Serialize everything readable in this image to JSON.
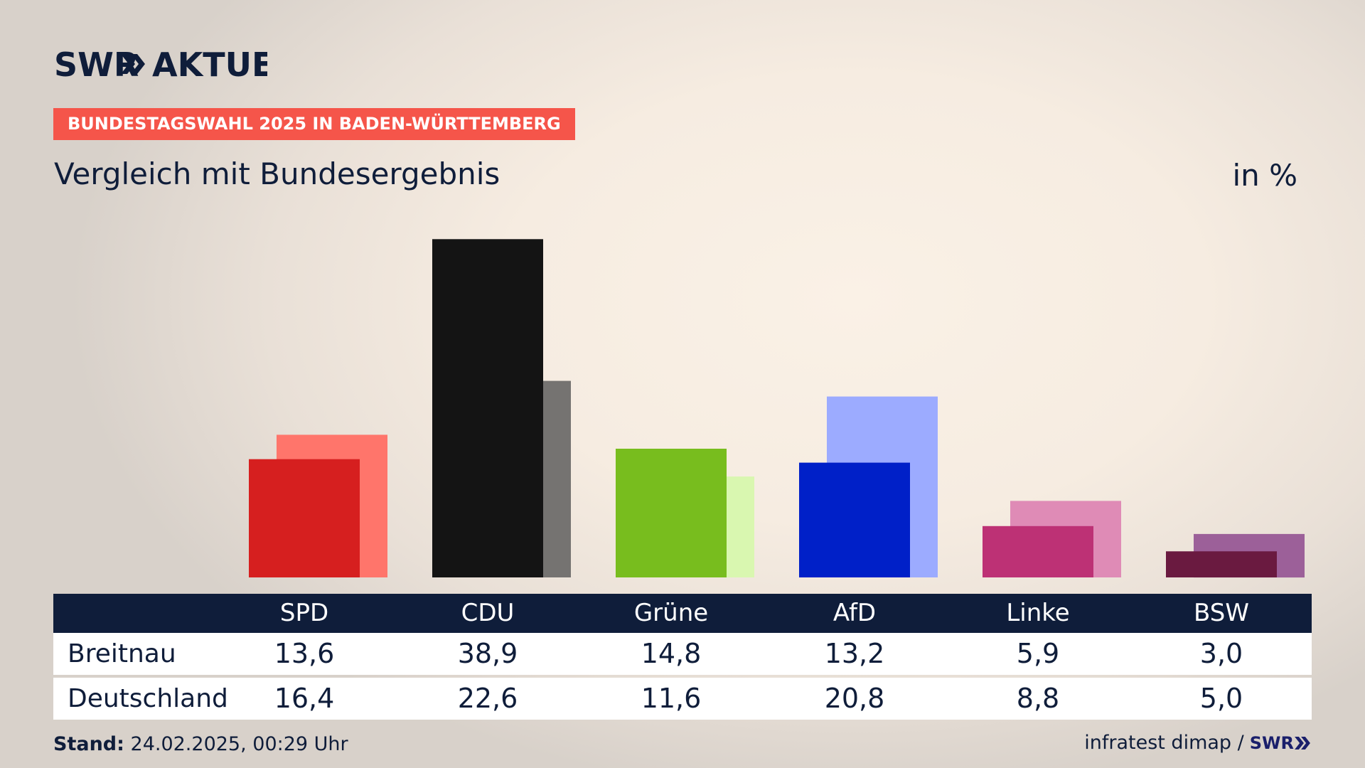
{
  "brand": {
    "logo_text": "SWR",
    "logo_suffix": "AKTUELL",
    "mini_logo_text": "SWR"
  },
  "banner": "BUNDESTAGSWAHL 2025 IN BADEN-WÜRTTEMBERG",
  "subtitle": "Vergleich mit Bundesergebnis",
  "unit": "in %",
  "footer": {
    "stand_label": "Stand:",
    "stand_value": "24.02.2025, 00:29 Uhr",
    "source": "infratest dimap /"
  },
  "chart_data": {
    "type": "bar",
    "categories": [
      "SPD",
      "CDU",
      "Grüne",
      "AfD",
      "Linke",
      "BSW"
    ],
    "series": [
      {
        "name": "Breitnau",
        "values": [
          13.6,
          38.9,
          14.8,
          13.2,
          5.9,
          3.0
        ],
        "labels": [
          "13,6",
          "38,9",
          "14,8",
          "13,2",
          "5,9",
          "3,0"
        ],
        "colors": [
          "#d61f1f",
          "#141414",
          "#78bd1e",
          "#0020c8",
          "#bd3175",
          "#6a1a40"
        ]
      },
      {
        "name": "Deutschland",
        "values": [
          16.4,
          22.6,
          11.6,
          20.8,
          8.8,
          5.0
        ],
        "labels": [
          "16,4",
          "22,6",
          "11,6",
          "20,8",
          "8,8",
          "5,0"
        ],
        "colors": [
          "#ff756b",
          "#757371",
          "#d9f7b0",
          "#9cabff",
          "#df8bb6",
          "#9c6099"
        ]
      }
    ],
    "ylim": [
      0,
      40
    ],
    "grid": false,
    "legend": "none"
  }
}
